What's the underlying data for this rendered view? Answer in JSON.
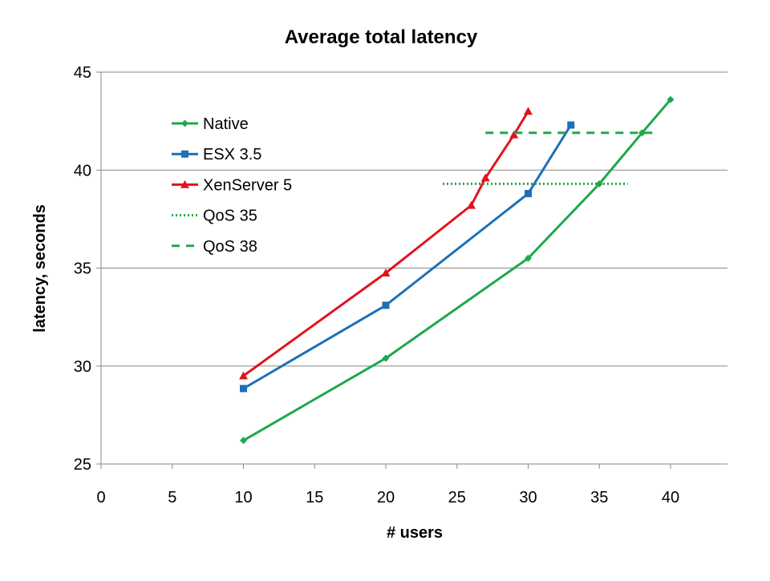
{
  "chart_data": {
    "type": "line",
    "title": "Average total latency",
    "xlabel": "# users",
    "ylabel": "latency, seconds",
    "xlim": [
      0,
      44
    ],
    "ylim": [
      25,
      45
    ],
    "x_ticks": [
      0,
      5,
      10,
      15,
      20,
      25,
      30,
      35,
      40
    ],
    "y_ticks": [
      25,
      30,
      35,
      40,
      45
    ],
    "grid": "horizontal",
    "legend_position": "top-left",
    "series": [
      {
        "name": "Native",
        "color": "#1EA84A",
        "marker": "diamond",
        "line_style": "solid",
        "points": [
          [
            10,
            26.2
          ],
          [
            20,
            30.4
          ],
          [
            30,
            35.5
          ],
          [
            35,
            39.3
          ],
          [
            38,
            41.9
          ],
          [
            40,
            43.6
          ]
        ]
      },
      {
        "name": "ESX 3.5",
        "color": "#1F6FB5",
        "marker": "square",
        "line_style": "solid",
        "points": [
          [
            10,
            28.85
          ],
          [
            20,
            33.1
          ],
          [
            30,
            38.8
          ],
          [
            33,
            42.3
          ]
        ]
      },
      {
        "name": "XenServer 5",
        "color": "#E0141E",
        "marker": "triangle",
        "line_style": "solid",
        "points": [
          [
            10,
            29.5
          ],
          [
            20,
            34.75
          ],
          [
            26,
            38.2
          ],
          [
            27,
            39.6
          ],
          [
            29,
            41.8
          ],
          [
            30,
            43.0
          ]
        ]
      },
      {
        "name": "QoS 35",
        "color": "#1EA84A",
        "marker": "none",
        "line_style": "dotted",
        "points": [
          [
            24,
            39.3
          ],
          [
            37,
            39.3
          ]
        ]
      },
      {
        "name": "QoS 38",
        "color": "#1EA84A",
        "marker": "none",
        "line_style": "dashed",
        "points": [
          [
            27,
            41.9
          ],
          [
            39,
            41.9
          ]
        ]
      }
    ]
  }
}
